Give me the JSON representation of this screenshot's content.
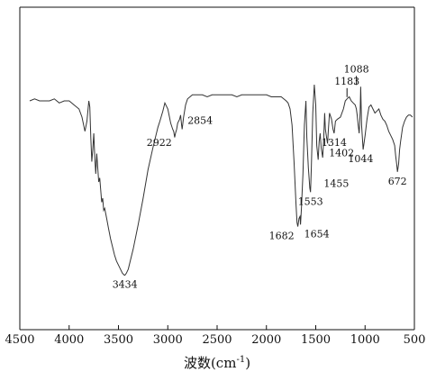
{
  "chart_data": {
    "type": "line",
    "title": "",
    "xlabel": "波数(cm",
    "xlabel_sup": "-1",
    "xlabel_close": ")",
    "ylabel": "",
    "xlim": [
      4500,
      500
    ],
    "xaxis_reversed": true,
    "ylim": [
      0,
      1
    ],
    "grid": false,
    "legend": "none",
    "line_color": "#333333",
    "x_ticks": [
      4500,
      4000,
      3500,
      3000,
      2500,
      2000,
      1500,
      1000,
      500
    ],
    "series": [
      {
        "x": [
          4400,
          4350,
          4300,
          4250,
          4200,
          4150,
          4100,
          4050,
          4000,
          3950,
          3900,
          3870,
          3840,
          3820,
          3800,
          3790,
          3780,
          3770,
          3760,
          3750,
          3740,
          3730,
          3720,
          3710,
          3700,
          3690,
          3680,
          3670,
          3660,
          3650,
          3640,
          3620,
          3600,
          3580,
          3560,
          3540,
          3520,
          3500,
          3480,
          3460,
          3440,
          3434,
          3420,
          3400,
          3380,
          3350,
          3300,
          3250,
          3200,
          3150,
          3100,
          3080,
          3050,
          3030,
          3000,
          2970,
          2950,
          2940,
          2930,
          2922,
          2910,
          2900,
          2880,
          2870,
          2860,
          2854,
          2840,
          2820,
          2800,
          2750,
          2700,
          2650,
          2600,
          2550,
          2500,
          2450,
          2400,
          2350,
          2300,
          2250,
          2200,
          2150,
          2100,
          2050,
          2000,
          1950,
          1900,
          1850,
          1800,
          1780,
          1760,
          1740,
          1720,
          1700,
          1690,
          1682,
          1670,
          1660,
          1654,
          1645,
          1630,
          1615,
          1600,
          1590,
          1575,
          1560,
          1553,
          1545,
          1530,
          1515,
          1500,
          1490,
          1475,
          1465,
          1455,
          1445,
          1430,
          1420,
          1410,
          1402,
          1390,
          1380,
          1370,
          1360,
          1340,
          1325,
          1314,
          1300,
          1280,
          1250,
          1220,
          1200,
          1183,
          1160,
          1140,
          1120,
          1100,
          1088,
          1080,
          1070,
          1060,
          1050,
          1044,
          1035,
          1020,
          1000,
          980,
          960,
          940,
          920,
          900,
          880,
          860,
          840,
          820,
          800,
          780,
          760,
          740,
          720,
          700,
          690,
          680,
          672,
          660,
          650,
          640,
          620,
          600,
          580,
          560,
          540,
          520
        ],
        "y": [
          0.88,
          0.89,
          0.88,
          0.88,
          0.88,
          0.89,
          0.87,
          0.88,
          0.88,
          0.86,
          0.84,
          0.8,
          0.73,
          0.78,
          0.88,
          0.85,
          0.7,
          0.58,
          0.64,
          0.72,
          0.6,
          0.52,
          0.62,
          0.55,
          0.48,
          0.5,
          0.44,
          0.38,
          0.4,
          0.34,
          0.35,
          0.3,
          0.25,
          0.2,
          0.16,
          0.12,
          0.09,
          0.07,
          0.05,
          0.03,
          0.02,
          0.02,
          0.03,
          0.05,
          0.09,
          0.15,
          0.27,
          0.4,
          0.54,
          0.65,
          0.75,
          0.78,
          0.83,
          0.87,
          0.84,
          0.77,
          0.74,
          0.73,
          0.7,
          0.72,
          0.74,
          0.77,
          0.79,
          0.81,
          0.76,
          0.74,
          0.8,
          0.86,
          0.89,
          0.91,
          0.91,
          0.91,
          0.9,
          0.91,
          0.91,
          0.91,
          0.91,
          0.91,
          0.9,
          0.91,
          0.91,
          0.91,
          0.91,
          0.91,
          0.91,
          0.9,
          0.9,
          0.9,
          0.88,
          0.87,
          0.84,
          0.76,
          0.58,
          0.37,
          0.28,
          0.26,
          0.3,
          0.31,
          0.27,
          0.35,
          0.52,
          0.76,
          0.88,
          0.7,
          0.55,
          0.45,
          0.43,
          0.55,
          0.82,
          0.96,
          0.86,
          0.66,
          0.59,
          0.68,
          0.72,
          0.65,
          0.6,
          0.69,
          0.82,
          0.74,
          0.7,
          0.67,
          0.75,
          0.82,
          0.79,
          0.74,
          0.72,
          0.78,
          0.79,
          0.8,
          0.84,
          0.88,
          0.89,
          0.9,
          0.88,
          0.87,
          0.86,
          0.84,
          0.81,
          0.76,
          0.72,
          0.82,
          0.95,
          0.76,
          0.64,
          0.71,
          0.79,
          0.85,
          0.86,
          0.84,
          0.82,
          0.83,
          0.84,
          0.81,
          0.79,
          0.78,
          0.76,
          0.73,
          0.71,
          0.69,
          0.66,
          0.61,
          0.57,
          0.53,
          0.57,
          0.64,
          0.68,
          0.75,
          0.78,
          0.8,
          0.81,
          0.81,
          0.8
        ]
      }
    ],
    "annotations": [
      {
        "text": "3434",
        "x": 3434,
        "y": 0.02,
        "pos": "below"
      },
      {
        "text": "2922",
        "x": 2922,
        "y": 0.72,
        "pos": "below-left"
      },
      {
        "text": "2854",
        "x": 2854,
        "y": 0.74,
        "pos": "right"
      },
      {
        "text": "1682",
        "x": 1682,
        "y": 0.26,
        "pos": "below-left"
      },
      {
        "text": "1654",
        "x": 1654,
        "y": 0.27,
        "pos": "below-right"
      },
      {
        "text": "1553",
        "x": 1553,
        "y": 0.43,
        "pos": "below"
      },
      {
        "text": "1455",
        "x": 1455,
        "y": 0.59,
        "pos": "below-right-far"
      },
      {
        "text": "1402",
        "x": 1402,
        "y": 0.67,
        "pos": "below-right"
      },
      {
        "text": "1314",
        "x": 1314,
        "y": 0.72,
        "pos": "below"
      },
      {
        "text": "1183",
        "x": 1183,
        "y": 0.89,
        "pos": "top-arrow"
      },
      {
        "text": "1088",
        "x": 1088,
        "y": 0.95,
        "pos": "top-arrow"
      },
      {
        "text": "1044",
        "x": 1044,
        "y": 0.64,
        "pos": "below"
      },
      {
        "text": "672",
        "x": 672,
        "y": 0.53,
        "pos": "below"
      }
    ]
  }
}
